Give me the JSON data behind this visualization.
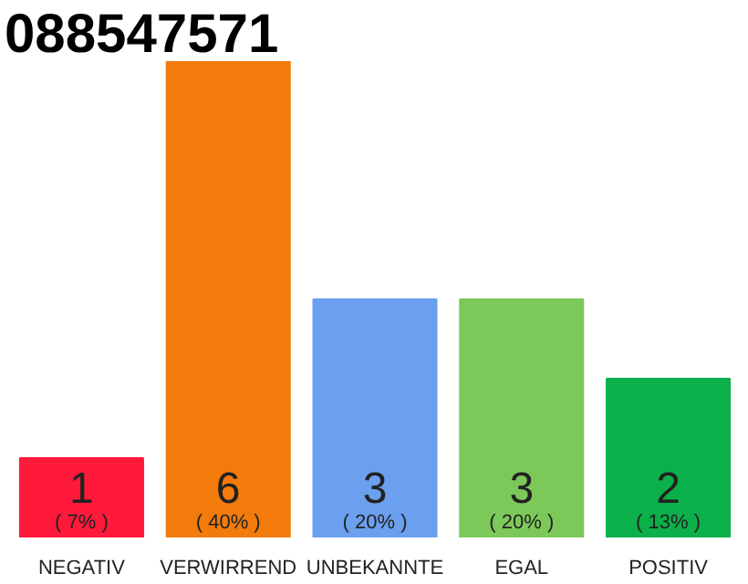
{
  "chart_data": {
    "type": "bar",
    "title": "088547571",
    "categories": [
      "NEGATIV",
      "VERWIRREND",
      "UNBEKANNTE",
      "EGAL",
      "POSITIV"
    ],
    "values": [
      1,
      6,
      3,
      3,
      2
    ],
    "colors": [
      "#ff1a3c",
      "#f27b0c",
      "#6aa0ee",
      "#7cc95a",
      "#0bb04a"
    ],
    "value_labels": [
      "1\n( 7% )",
      "6\n( 40% )",
      "3\n( 20% )",
      "3\n( 20% )",
      "2\n( 13% )"
    ],
    "grid": false
  }
}
